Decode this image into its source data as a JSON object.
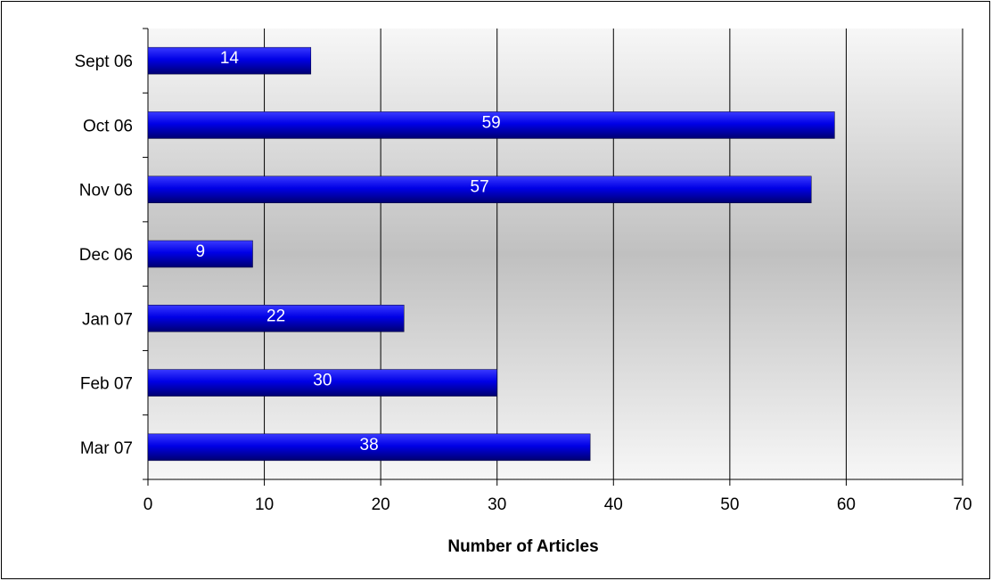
{
  "chart_data": {
    "type": "bar",
    "orientation": "horizontal",
    "categories": [
      "Sept 06",
      "Oct 06",
      "Nov 06",
      "Dec 06",
      "Jan 07",
      "Feb 07",
      "Mar 07"
    ],
    "values": [
      14,
      59,
      57,
      9,
      22,
      30,
      38
    ],
    "xlabel": "Number of Articles",
    "ylabel": "",
    "xlim": [
      0,
      70
    ],
    "xticks": [
      0,
      10,
      20,
      30,
      40,
      50,
      60,
      70
    ],
    "grid": "vertical",
    "legend": "none",
    "data_labels": true,
    "colors": {
      "bar_light": "#3a3aff",
      "bar_main": "#0000e6",
      "bar_dark": "#000070",
      "plot_bg_edge": "#f7f7f7",
      "plot_bg_center": "#c0c0c0",
      "gridline": "#000000"
    }
  }
}
